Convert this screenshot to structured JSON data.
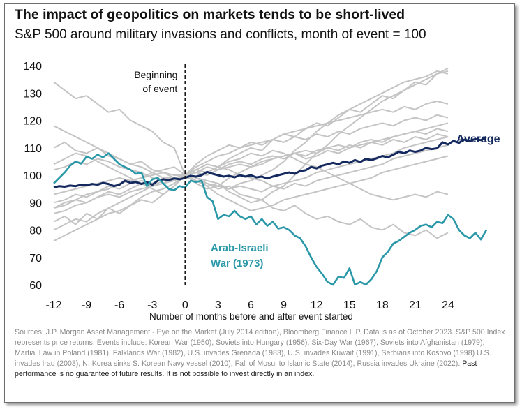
{
  "chart_data": {
    "type": "line",
    "title": "The impact of geopolitics on markets tends to be short-lived",
    "subtitle": "S&P 500 around military invasions and conflicts, month of event = 100",
    "xlabel": "Number of months before and after event started",
    "ylabel": "",
    "x_ticks": [
      -12,
      -9,
      -6,
      -3,
      0,
      3,
      6,
      9,
      12,
      15,
      18,
      21,
      24
    ],
    "y_ticks": [
      60,
      70,
      80,
      90,
      100,
      110,
      120,
      130,
      140
    ],
    "xlim": [
      -12,
      24
    ],
    "ylim": [
      60,
      140
    ],
    "grid": false,
    "event_marker": {
      "x": 0,
      "label_line1": "Beginning",
      "label_line2": "of event"
    },
    "colors": {
      "events": "#c4c4c4",
      "average": "#14295e",
      "arab_israeli": "#2a98a8"
    },
    "series": [
      {
        "name": "Average",
        "role": "highlight",
        "x_start": -12,
        "x_step": 0.5,
        "values": [
          95.5,
          96,
          95.8,
          96.2,
          96,
          96.5,
          96.3,
          96.8,
          96.5,
          97.2,
          96.8,
          96,
          96.5,
          98,
          97.2,
          97.5,
          96.8,
          97.5,
          96.5,
          98,
          98.5,
          98.2,
          98.8,
          98.5,
          99,
          99.8,
          99.5,
          100,
          101.2,
          100.5,
          100,
          99.5,
          99.8,
          99.2,
          100,
          99.5,
          100,
          99.2,
          99.5,
          98.8,
          99.5,
          100,
          100.5,
          101,
          100.5,
          101.5,
          101.8,
          103,
          102.5,
          103.5,
          104,
          104.5,
          104,
          105,
          104.5,
          105.5,
          104.8,
          106,
          105.5,
          106.2,
          107,
          106.5,
          107.5,
          108.5,
          108,
          109,
          108.5,
          109,
          110,
          109.5,
          109.8,
          112,
          111.2,
          112.5,
          111.8,
          113,
          112.5,
          113.2,
          112.8,
          114
        ]
      },
      {
        "name": "Arab-Israeli War (1973)",
        "role": "highlight",
        "x_start": -12,
        "x_step": 0.5,
        "values": [
          97,
          99,
          101,
          103.5,
          105,
          104.2,
          106.8,
          106,
          107.5,
          106.5,
          108,
          106,
          104,
          103,
          102,
          100.5,
          101,
          96,
          98.5,
          99,
          97,
          95,
          94.5,
          96,
          95.5,
          98,
          97.5,
          98,
          92,
          90.5,
          84,
          85.5,
          85,
          87,
          85,
          84,
          85,
          82,
          84,
          81.5,
          83,
          80.5,
          81,
          80,
          78,
          77,
          74,
          70,
          66.5,
          64,
          61,
          60,
          63,
          62.5,
          66,
          60,
          61,
          60,
          62,
          65,
          70,
          72,
          75,
          76,
          77.5,
          79,
          80,
          81.5,
          82,
          81,
          83,
          82.5,
          85.5,
          84,
          80,
          78,
          77,
          79,
          76.5,
          80
        ]
      },
      {
        "name": "Korean War (1950)",
        "role": "context",
        "x_start": -12,
        "x_step": 1,
        "values": [
          83,
          85,
          82,
          86,
          84,
          88,
          86,
          89,
          91,
          90,
          93,
          96,
          100,
          102,
          104,
          103,
          106,
          108,
          110,
          109,
          113,
          115,
          114,
          117,
          119,
          118,
          121,
          124,
          123,
          126,
          129,
          128,
          131,
          134,
          133,
          137,
          139
        ]
      },
      {
        "name": "Soviets into Hungary (1956)",
        "role": "context",
        "x_start": -12,
        "x_step": 1,
        "values": [
          134,
          131,
          128,
          129,
          126,
          123,
          124,
          120,
          118,
          116,
          112,
          110,
          100,
          98,
          96,
          97,
          94,
          92,
          90,
          91,
          88,
          87,
          89,
          86,
          84,
          85,
          83,
          82,
          84,
          81,
          80,
          82,
          79,
          78,
          80,
          77,
          79
        ]
      },
      {
        "name": "Six-Day War (1967)",
        "role": "context",
        "x_start": -12,
        "x_step": 1,
        "values": [
          90,
          91,
          93,
          92,
          94,
          96,
          95,
          97,
          98,
          97,
          99,
          99,
          100,
          101,
          103,
          102,
          104,
          105,
          104,
          106,
          107,
          106,
          108,
          109,
          108,
          110,
          109,
          111,
          110,
          112,
          111,
          113,
          112,
          114,
          113,
          115,
          114
        ]
      },
      {
        "name": "Soviets into Afghanistan (1979)",
        "role": "context",
        "x_start": -12,
        "x_step": 1,
        "values": [
          88,
          89,
          91,
          90,
          92,
          93,
          92,
          94,
          95,
          96,
          97,
          98,
          100,
          101,
          100,
          102,
          103,
          104,
          103,
          105,
          106,
          107,
          108,
          107,
          109,
          110,
          111,
          110,
          112,
          113,
          112,
          114,
          115,
          116,
          115,
          117,
          116
        ]
      },
      {
        "name": "Martial Law in Poland (1981)",
        "role": "context",
        "x_start": -12,
        "x_step": 1,
        "values": [
          110,
          112,
          109,
          108,
          110,
          107,
          106,
          104,
          105,
          102,
          101,
          99,
          100,
          99,
          97,
          95,
          96,
          93,
          92,
          91,
          94,
          96,
          100,
          104,
          108,
          111,
          115,
          118,
          121,
          124,
          127,
          129,
          131,
          133,
          135,
          137,
          138
        ]
      },
      {
        "name": "Falklands War (1982)",
        "role": "context",
        "x_start": -12,
        "x_step": 1,
        "values": [
          102,
          103,
          105,
          104,
          106,
          105,
          103,
          102,
          101,
          99,
          98,
          99,
          100,
          98,
          97,
          96,
          95,
          97,
          98,
          100,
          102,
          105,
          109,
          112,
          116,
          119,
          122,
          124,
          126,
          128,
          130,
          132,
          134,
          135,
          136,
          138,
          137
        ]
      },
      {
        "name": "U.S. invades Grenada (1983)",
        "role": "context",
        "x_start": -12,
        "x_step": 1,
        "values": [
          80,
          82,
          84,
          83,
          86,
          88,
          90,
          92,
          94,
          96,
          97,
          99,
          100,
          99,
          98,
          97,
          95,
          96,
          95,
          94,
          96,
          95,
          97,
          96,
          98,
          99,
          100,
          101,
          102,
          103,
          104,
          106,
          107,
          108,
          109,
          110,
          111
        ]
      },
      {
        "name": "U.S. invades Kuwait (1991)",
        "role": "context",
        "x_start": -12,
        "x_step": 1,
        "values": [
          104,
          106,
          108,
          107,
          105,
          103,
          101,
          99,
          97,
          95,
          93,
          96,
          100,
          104,
          107,
          109,
          111,
          110,
          112,
          111,
          113,
          112,
          114,
          113,
          115,
          114,
          116,
          115,
          117,
          118,
          119,
          118,
          120,
          121,
          120,
          122,
          121
        ]
      },
      {
        "name": "Serbians into Kosovo (1998)",
        "role": "context",
        "x_start": -12,
        "x_step": 1,
        "values": [
          76,
          78,
          80,
          82,
          84,
          86,
          87,
          89,
          92,
          94,
          95,
          97,
          100,
          102,
          104,
          103,
          105,
          106,
          108,
          107,
          109,
          108,
          106,
          104,
          103,
          101,
          99,
          97,
          95,
          93,
          92,
          91,
          92,
          93,
          92,
          94,
          93
        ]
      },
      {
        "name": "U.S. invades Iraq (2003)",
        "role": "context",
        "x_start": -12,
        "x_step": 1,
        "values": [
          118,
          116,
          114,
          112,
          110,
          108,
          106,
          104,
          103,
          101,
          99,
          98,
          100,
          103,
          105,
          107,
          108,
          110,
          111,
          112,
          113,
          115,
          116,
          117,
          118,
          119,
          120,
          121,
          122,
          123,
          124,
          123,
          125,
          124,
          126,
          127,
          126
        ]
      },
      {
        "name": "N. Korea sinks S. Korean Navy vessel (2010)",
        "role": "context",
        "x_start": -12,
        "x_step": 1,
        "values": [
          86,
          87,
          89,
          90,
          92,
          94,
          93,
          95,
          97,
          96,
          98,
          99,
          100,
          97,
          95,
          96,
          99,
          101,
          103,
          104,
          106,
          107,
          108,
          106,
          107,
          109,
          108,
          110,
          111,
          112,
          113,
          114,
          115,
          116,
          117,
          118,
          119
        ]
      },
      {
        "name": "Fall of Mosul to Islamic State (2014)",
        "role": "context",
        "x_start": -12,
        "x_step": 1,
        "values": [
          93,
          94,
          95,
          96,
          97,
          98,
          99,
          98,
          99,
          100,
          101,
          100,
          100,
          102,
          101,
          103,
          102,
          100,
          99,
          98,
          96,
          97,
          98,
          99,
          101,
          102,
          103,
          104,
          105,
          106,
          107,
          108,
          110,
          111,
          112,
          113,
          114
        ]
      },
      {
        "name": "Russia invades Ukraine (2022)",
        "role": "context",
        "x_start": -12,
        "x_step": 1,
        "values": [
          88,
          90,
          91,
          93,
          94,
          95,
          97,
          98,
          99,
          101,
          102,
          103,
          100,
          98,
          96,
          93,
          91,
          89,
          87,
          88,
          89,
          91,
          92,
          93,
          94,
          95,
          96,
          97,
          98,
          99,
          101,
          102,
          103,
          104,
          105,
          106,
          107
        ]
      }
    ],
    "annotations": {
      "average_label": "Average",
      "arab_label_line1": "Arab-Israeli",
      "arab_label_line2": "War (1973)"
    }
  },
  "footnote": {
    "main": "Sources: J.P. Morgan Asset Management - Eye on the Market (July 2014 edition), Bloomberg Finance L.P. Data is as of October 2023. S&P 500 Index represents price returns. Events include: Korean War (1950), Soviets into Hungary (1956), Six-Day War (1967), Soviets into Afghanistan (1979), Martial Law in Poland (1981), Falklands War (1982), U.S. invades Grenada (1983), U.S. invades Kuwait (1991), Serbians into Kosovo (1998) U.S. invades Iraq (2003), N. Korea sinks S. Korean Navy vessel (2010), Fall of Mosul to Islamic State (2014), Russia invades Ukraine (2022). ",
    "emphasis": "Past performance is no guarantee of future results. It is not possible to invest directly in an index."
  }
}
